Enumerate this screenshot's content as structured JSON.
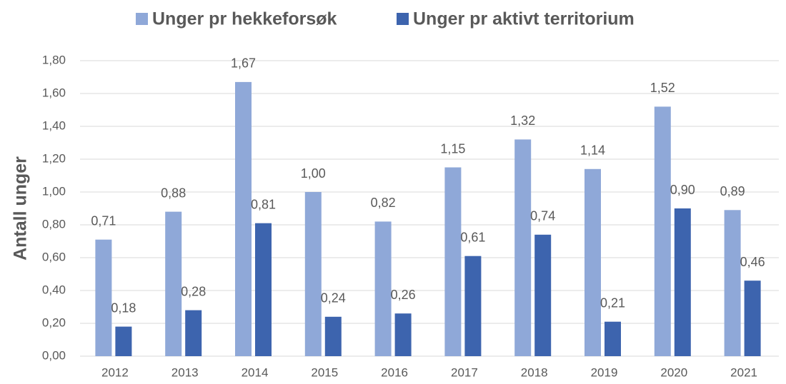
{
  "chart_data": {
    "type": "bar",
    "y_label": "Antall unger",
    "categories": [
      "2012",
      "2013",
      "2014",
      "2015",
      "2016",
      "2017",
      "2018",
      "2019",
      "2020",
      "2021"
    ],
    "series": [
      {
        "name": "Unger pr hekkeforsøk",
        "color": "#8fa8d8",
        "values": [
          0.71,
          0.88,
          1.67,
          1.0,
          0.82,
          1.15,
          1.32,
          1.14,
          1.52,
          0.89
        ],
        "value_labels": [
          "0,71",
          "0,88",
          "1,67",
          "1,00",
          "0,82",
          "1,15",
          "1,32",
          "1,14",
          "1,52",
          "0,89"
        ]
      },
      {
        "name": "Unger pr aktivt territorium",
        "color": "#3d64ae",
        "values": [
          0.18,
          0.28,
          0.81,
          0.24,
          0.26,
          0.61,
          0.74,
          0.21,
          0.9,
          0.46
        ],
        "value_labels": [
          "0,18",
          "0,28",
          "0,81",
          "0,24",
          "0,26",
          "0,61",
          "0,74",
          "0,21",
          "0,90",
          "0,46"
        ]
      }
    ],
    "ylim": [
      0,
      1.8
    ],
    "yticks": [
      {
        "value": 0,
        "label": "0,00"
      },
      {
        "value": 0.2,
        "label": "0,20"
      },
      {
        "value": 0.4,
        "label": "0,40"
      },
      {
        "value": 0.6,
        "label": "0,60"
      },
      {
        "value": 0.8,
        "label": "0,80"
      },
      {
        "value": 1.0,
        "label": "1,00"
      },
      {
        "value": 1.2,
        "label": "1,20"
      },
      {
        "value": 1.4,
        "label": "1,40"
      },
      {
        "value": 1.6,
        "label": "1,60"
      },
      {
        "value": 1.8,
        "label": "1,80"
      }
    ],
    "grid": true,
    "legend": "top"
  }
}
